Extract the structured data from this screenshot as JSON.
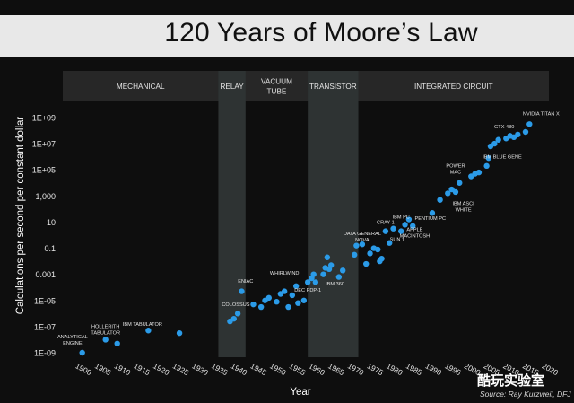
{
  "title": "120 Years of Moore’s Law",
  "watermark": "酷玩实验室",
  "source": "Source: Ray Kurzweil, DFJ",
  "colors": {
    "background": "#0e0e0e",
    "title_bar": "#e8e8e8",
    "era_band": "#2e3333",
    "era_header": "#272727",
    "point": "#2b9be8",
    "text": "#e6e6e6"
  },
  "chart_data": {
    "type": "scatter",
    "title": "120 Years of Moore’s Law",
    "xlabel": "Year",
    "ylabel": "Calculations per second per constant dollar",
    "xlim": [
      1895,
      2020
    ],
    "ylim_log10": [
      -9.4,
      9.6
    ],
    "yscale": "log",
    "x_ticks": [
      "1900",
      "1905",
      "1910",
      "1915",
      "1920",
      "1925",
      "1930",
      "1935",
      "1940",
      "1945",
      "1950",
      "1955",
      "1960",
      "1965",
      "1970",
      "1975",
      "1980",
      "1985",
      "1990",
      "1995",
      "2000",
      "2005",
      "2010",
      "2015",
      "2020"
    ],
    "y_ticks": [
      {
        "label": "1E-09",
        "log": -9
      },
      {
        "label": "1E-07",
        "log": -7
      },
      {
        "label": "1E-05",
        "log": -5
      },
      {
        "label": "0.001",
        "log": -3
      },
      {
        "label": "0.1",
        "log": -1
      },
      {
        "label": "10",
        "log": 1
      },
      {
        "label": "1,000",
        "log": 3
      },
      {
        "label": "1E+05",
        "log": 5
      },
      {
        "label": "1E+07",
        "log": 7
      },
      {
        "label": "1E+09",
        "log": 9
      }
    ],
    "eras": [
      {
        "name": "MECHANICAL",
        "start": 1895,
        "end": 1935,
        "shaded": false,
        "lines": [
          "MECHANICAL"
        ]
      },
      {
        "name": "RELAY",
        "start": 1935,
        "end": 1942,
        "shaded": true,
        "lines": [
          "RELAY"
        ]
      },
      {
        "name": "VACUUM TUBE",
        "start": 1942,
        "end": 1958,
        "shaded": false,
        "lines": [
          "VACUUM",
          "TUBE"
        ]
      },
      {
        "name": "TRANSISTOR",
        "start": 1958,
        "end": 1971,
        "shaded": true,
        "lines": [
          "TRANSISTOR"
        ]
      },
      {
        "name": "INTEGRATED CIRCUIT",
        "start": 1971,
        "end": 2020,
        "shaded": false,
        "lines": [
          "INTEGRATED CIRCUIT"
        ]
      }
    ],
    "points": [
      {
        "year": 1900,
        "log": -9.0
      },
      {
        "year": 1906,
        "log": -8.0
      },
      {
        "year": 1909,
        "log": -8.3
      },
      {
        "year": 1917,
        "log": -7.3
      },
      {
        "year": 1925,
        "log": -7.5
      },
      {
        "year": 1938,
        "log": -6.6
      },
      {
        "year": 1939,
        "log": -6.4
      },
      {
        "year": 1940,
        "log": -6.0
      },
      {
        "year": 1941,
        "log": -4.3
      },
      {
        "year": 1944,
        "log": -5.3
      },
      {
        "year": 1946,
        "log": -5.5
      },
      {
        "year": 1947,
        "log": -5.0
      },
      {
        "year": 1948,
        "log": -4.8
      },
      {
        "year": 1950,
        "log": -5.1
      },
      {
        "year": 1951,
        "log": -4.5
      },
      {
        "year": 1952,
        "log": -4.3
      },
      {
        "year": 1953,
        "log": -5.5
      },
      {
        "year": 1954,
        "log": -4.6
      },
      {
        "year": 1955,
        "log": -3.9
      },
      {
        "year": 1955.5,
        "log": -5.2
      },
      {
        "year": 1957,
        "log": -5.0
      },
      {
        "year": 1958,
        "log": -3.6
      },
      {
        "year": 1959,
        "log": -3.3
      },
      {
        "year": 1959.5,
        "log": -3.0
      },
      {
        "year": 1960,
        "log": -3.6
      },
      {
        "year": 1962,
        "log": -3.0
      },
      {
        "year": 1962.5,
        "log": -2.5
      },
      {
        "year": 1963,
        "log": -1.7
      },
      {
        "year": 1963.5,
        "log": -2.6
      },
      {
        "year": 1964,
        "log": -2.3
      },
      {
        "year": 1966,
        "log": -3.2
      },
      {
        "year": 1967,
        "log": -2.7
      },
      {
        "year": 1970,
        "log": -1.5
      },
      {
        "year": 1970.5,
        "log": -0.8
      },
      {
        "year": 1972,
        "log": -0.7
      },
      {
        "year": 1973,
        "log": -2.2
      },
      {
        "year": 1974,
        "log": -1.4
      },
      {
        "year": 1975,
        "log": -1.0
      },
      {
        "year": 1976,
        "log": -1.1
      },
      {
        "year": 1976.5,
        "log": -2.0
      },
      {
        "year": 1977,
        "log": -1.8
      },
      {
        "year": 1978,
        "log": 0.3
      },
      {
        "year": 1979,
        "log": -0.6
      },
      {
        "year": 1980,
        "log": 0.5
      },
      {
        "year": 1982,
        "log": 0.3
      },
      {
        "year": 1983,
        "log": 0.8
      },
      {
        "year": 1984,
        "log": 1.2
      },
      {
        "year": 1985,
        "log": 0.7
      },
      {
        "year": 1990,
        "log": 1.7
      },
      {
        "year": 1992,
        "log": 2.7
      },
      {
        "year": 1994,
        "log": 3.2
      },
      {
        "year": 1995,
        "log": 3.5
      },
      {
        "year": 1996,
        "log": 3.3
      },
      {
        "year": 1997,
        "log": 4.0
      },
      {
        "year": 2000,
        "log": 4.5
      },
      {
        "year": 2001,
        "log": 4.7
      },
      {
        "year": 2002,
        "log": 4.8
      },
      {
        "year": 2004,
        "log": 5.3
      },
      {
        "year": 2004.5,
        "log": 5.9
      },
      {
        "year": 2005,
        "log": 6.8
      },
      {
        "year": 2006,
        "log": 7.0
      },
      {
        "year": 2007,
        "log": 7.3
      },
      {
        "year": 2009,
        "log": 7.4
      },
      {
        "year": 2010,
        "log": 7.6
      },
      {
        "year": 2011,
        "log": 7.5
      },
      {
        "year": 2012,
        "log": 7.7
      },
      {
        "year": 2014,
        "log": 7.9
      },
      {
        "year": 2015,
        "log": 8.5
      }
    ],
    "annotations": [
      {
        "lines": [
          "ANALYTICAL",
          "ENGINE"
        ],
        "year": 1897.5,
        "log": -8.0
      },
      {
        "lines": [
          "HOLLERITH",
          "TABULATOR"
        ],
        "year": 1906,
        "log": -7.2
      },
      {
        "lines": [
          "IBM TABULATOR"
        ],
        "year": 1915.5,
        "log": -6.8
      },
      {
        "lines": [
          "COLOSSUS"
        ],
        "year": 1939.5,
        "log": -5.3
      },
      {
        "lines": [
          "ENIAC"
        ],
        "year": 1942,
        "log": -3.5
      },
      {
        "lines": [
          "WHIRLWIND"
        ],
        "year": 1952,
        "log": -2.9
      },
      {
        "lines": [
          "DEC PDP-1"
        ],
        "year": 1958,
        "log": -4.2
      },
      {
        "lines": [
          "IBM 360"
        ],
        "year": 1965,
        "log": -3.7
      },
      {
        "lines": [
          "DATA GENERAL",
          "NOVA"
        ],
        "year": 1972,
        "log": -0.1
      },
      {
        "lines": [
          "CRAY 1"
        ],
        "year": 1978,
        "log": 1.0
      },
      {
        "lines": [
          "SUN 1"
        ],
        "year": 1981,
        "log": -0.3
      },
      {
        "lines": [
          "IBM PC"
        ],
        "year": 1982,
        "log": 1.4
      },
      {
        "lines": [
          "APPLE",
          "MACINTOSH"
        ],
        "year": 1985.5,
        "log": 0.2
      },
      {
        "lines": [
          "PENTIUM PC"
        ],
        "year": 1989.5,
        "log": 1.3
      },
      {
        "lines": [
          "POWER",
          "MAC"
        ],
        "year": 1996,
        "log": 5.1
      },
      {
        "lines": [
          "IBM ASCI",
          "WHITE"
        ],
        "year": 1998,
        "log": 2.2
      },
      {
        "lines": [
          "IBM BLUE GENE"
        ],
        "year": 2008,
        "log": 6.0
      },
      {
        "lines": [
          "GTX 480"
        ],
        "year": 2008.5,
        "log": 8.3
      },
      {
        "lines": [
          "NVIDIA TITAN X"
        ],
        "year": 2018,
        "log": 9.3
      }
    ]
  }
}
